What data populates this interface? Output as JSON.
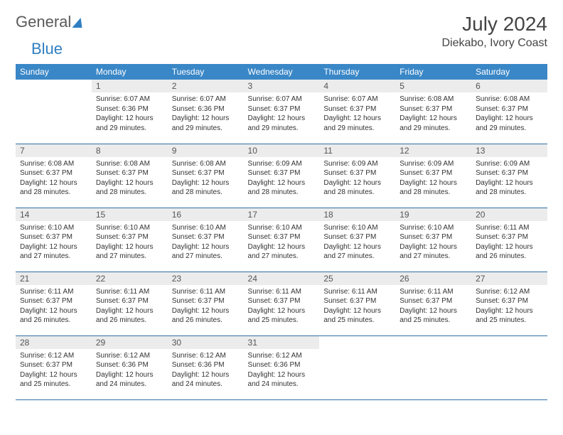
{
  "brand": {
    "word1": "General",
    "word2": "Blue"
  },
  "title": "July 2024",
  "location": "Diekabo, Ivory Coast",
  "colors": {
    "header_bg": "#3a87c7",
    "header_text": "#ffffff",
    "daynum_bg": "#ececec",
    "row_divider": "#2f6fa3",
    "text": "#333333",
    "brand_gray": "#5a5a5a",
    "brand_blue": "#2f7fc1"
  },
  "weekdays": [
    "Sunday",
    "Monday",
    "Tuesday",
    "Wednesday",
    "Thursday",
    "Friday",
    "Saturday"
  ],
  "rows": [
    [
      null,
      {
        "n": "1",
        "sr": "6:07 AM",
        "ss": "6:36 PM",
        "dl": "12 hours and 29 minutes."
      },
      {
        "n": "2",
        "sr": "6:07 AM",
        "ss": "6:36 PM",
        "dl": "12 hours and 29 minutes."
      },
      {
        "n": "3",
        "sr": "6:07 AM",
        "ss": "6:37 PM",
        "dl": "12 hours and 29 minutes."
      },
      {
        "n": "4",
        "sr": "6:07 AM",
        "ss": "6:37 PM",
        "dl": "12 hours and 29 minutes."
      },
      {
        "n": "5",
        "sr": "6:08 AM",
        "ss": "6:37 PM",
        "dl": "12 hours and 29 minutes."
      },
      {
        "n": "6",
        "sr": "6:08 AM",
        "ss": "6:37 PM",
        "dl": "12 hours and 29 minutes."
      }
    ],
    [
      {
        "n": "7",
        "sr": "6:08 AM",
        "ss": "6:37 PM",
        "dl": "12 hours and 28 minutes."
      },
      {
        "n": "8",
        "sr": "6:08 AM",
        "ss": "6:37 PM",
        "dl": "12 hours and 28 minutes."
      },
      {
        "n": "9",
        "sr": "6:08 AM",
        "ss": "6:37 PM",
        "dl": "12 hours and 28 minutes."
      },
      {
        "n": "10",
        "sr": "6:09 AM",
        "ss": "6:37 PM",
        "dl": "12 hours and 28 minutes."
      },
      {
        "n": "11",
        "sr": "6:09 AM",
        "ss": "6:37 PM",
        "dl": "12 hours and 28 minutes."
      },
      {
        "n": "12",
        "sr": "6:09 AM",
        "ss": "6:37 PM",
        "dl": "12 hours and 28 minutes."
      },
      {
        "n": "13",
        "sr": "6:09 AM",
        "ss": "6:37 PM",
        "dl": "12 hours and 28 minutes."
      }
    ],
    [
      {
        "n": "14",
        "sr": "6:10 AM",
        "ss": "6:37 PM",
        "dl": "12 hours and 27 minutes."
      },
      {
        "n": "15",
        "sr": "6:10 AM",
        "ss": "6:37 PM",
        "dl": "12 hours and 27 minutes."
      },
      {
        "n": "16",
        "sr": "6:10 AM",
        "ss": "6:37 PM",
        "dl": "12 hours and 27 minutes."
      },
      {
        "n": "17",
        "sr": "6:10 AM",
        "ss": "6:37 PM",
        "dl": "12 hours and 27 minutes."
      },
      {
        "n": "18",
        "sr": "6:10 AM",
        "ss": "6:37 PM",
        "dl": "12 hours and 27 minutes."
      },
      {
        "n": "19",
        "sr": "6:10 AM",
        "ss": "6:37 PM",
        "dl": "12 hours and 27 minutes."
      },
      {
        "n": "20",
        "sr": "6:11 AM",
        "ss": "6:37 PM",
        "dl": "12 hours and 26 minutes."
      }
    ],
    [
      {
        "n": "21",
        "sr": "6:11 AM",
        "ss": "6:37 PM",
        "dl": "12 hours and 26 minutes."
      },
      {
        "n": "22",
        "sr": "6:11 AM",
        "ss": "6:37 PM",
        "dl": "12 hours and 26 minutes."
      },
      {
        "n": "23",
        "sr": "6:11 AM",
        "ss": "6:37 PM",
        "dl": "12 hours and 26 minutes."
      },
      {
        "n": "24",
        "sr": "6:11 AM",
        "ss": "6:37 PM",
        "dl": "12 hours and 25 minutes."
      },
      {
        "n": "25",
        "sr": "6:11 AM",
        "ss": "6:37 PM",
        "dl": "12 hours and 25 minutes."
      },
      {
        "n": "26",
        "sr": "6:11 AM",
        "ss": "6:37 PM",
        "dl": "12 hours and 25 minutes."
      },
      {
        "n": "27",
        "sr": "6:12 AM",
        "ss": "6:37 PM",
        "dl": "12 hours and 25 minutes."
      }
    ],
    [
      {
        "n": "28",
        "sr": "6:12 AM",
        "ss": "6:37 PM",
        "dl": "12 hours and 25 minutes."
      },
      {
        "n": "29",
        "sr": "6:12 AM",
        "ss": "6:36 PM",
        "dl": "12 hours and 24 minutes."
      },
      {
        "n": "30",
        "sr": "6:12 AM",
        "ss": "6:36 PM",
        "dl": "12 hours and 24 minutes."
      },
      {
        "n": "31",
        "sr": "6:12 AM",
        "ss": "6:36 PM",
        "dl": "12 hours and 24 minutes."
      },
      null,
      null,
      null
    ]
  ],
  "labels": {
    "sunrise_prefix": "Sunrise: ",
    "sunset_prefix": "Sunset: ",
    "daylight_prefix": "Daylight: "
  }
}
